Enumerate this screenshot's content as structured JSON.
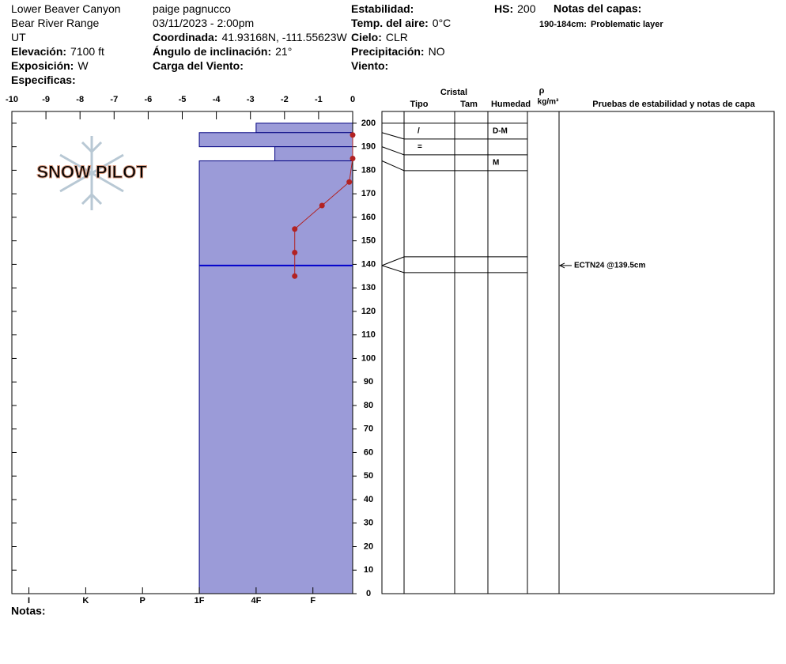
{
  "header": {
    "columns": [
      [
        {
          "text": "Lower Beaver Canyon"
        },
        {
          "text": "Bear River Range"
        },
        {
          "text": "UT"
        },
        {
          "label": "Elevación:",
          "value": "7100 ft"
        },
        {
          "label": "Exposición:",
          "value": "W"
        },
        {
          "label": "Especificas:"
        }
      ],
      [
        {
          "text": "paige pagnucco"
        },
        {
          "text": "03/11/2023 - 2:00pm"
        },
        {
          "label": "Coordinada:",
          "value": "41.93168N, -111.55623W"
        },
        {
          "label": "Ángulo de inclinación:",
          "value": "21°"
        },
        {
          "label": "Carga del Viento:"
        }
      ],
      [
        {
          "label": "Estabilidad:"
        },
        {
          "label": "Temp. del aire:",
          "value": "0°C"
        },
        {
          "label": "Cielo:",
          "value": "CLR"
        },
        {
          "label": "Precipitación:",
          "value": "NO"
        },
        {
          "label": "Viento:"
        }
      ]
    ],
    "hs": {
      "label": "HS:",
      "value": "200"
    },
    "layer_notes_title": "Notas del capas:",
    "layer_notes": [
      {
        "label": "190-184cm:",
        "value": "Problematic layer"
      }
    ],
    "logo": "SNOW PILOT",
    "notes": "Notas:"
  },
  "chart_data": {
    "type": "snow-profile",
    "ylim": [
      0,
      205
    ],
    "yticks": [
      0,
      10,
      20,
      30,
      40,
      50,
      60,
      70,
      80,
      90,
      100,
      110,
      120,
      130,
      140,
      150,
      160,
      170,
      180,
      190,
      200
    ],
    "temperature": {
      "xlim": [
        -10,
        0
      ],
      "xticks": [
        -10,
        -9,
        -8,
        -7,
        -6,
        -5,
        -4,
        -3,
        -2,
        -1,
        0
      ],
      "heights": [
        195,
        185,
        175,
        165,
        155,
        145,
        135
      ],
      "values": [
        0,
        0,
        -0.1,
        -0.9,
        -1.7,
        -1.7,
        -1.7
      ],
      "color": "#b22222"
    },
    "hardness": {
      "lim": [
        0.3,
        6.3
      ],
      "color": "#9b9bd8",
      "ticks": [
        {
          "value": 6,
          "label": "I"
        },
        {
          "value": 5,
          "label": "K"
        },
        {
          "value": 4,
          "label": "P"
        },
        {
          "value": 3,
          "label": "1F"
        },
        {
          "value": 2,
          "label": "4F"
        },
        {
          "value": 1,
          "label": "F"
        }
      ]
    },
    "layers": [
      {
        "top": 200,
        "bottom": 196,
        "hardness": 2,
        "crystal": "/",
        "moisture": "D-M"
      },
      {
        "top": 196,
        "bottom": 190,
        "hardness": 3,
        "crystal": "="
      },
      {
        "top": 190,
        "bottom": 184,
        "hardness": 1.67,
        "moisture": "M"
      },
      {
        "top": 184,
        "bottom": 0,
        "hardness": 3
      }
    ],
    "tests": [
      {
        "height": 139.5,
        "label": "ECTN24 @139.5cm",
        "color": "#0000cc"
      }
    ],
    "columns": {
      "crystal": "Cristal",
      "type": "Tipo",
      "size": "Tam",
      "moisture": "Humedad",
      "rho": "ρ",
      "density": "kg/m³",
      "tests": "Pruebas de estabilidad y notas de capa"
    }
  }
}
